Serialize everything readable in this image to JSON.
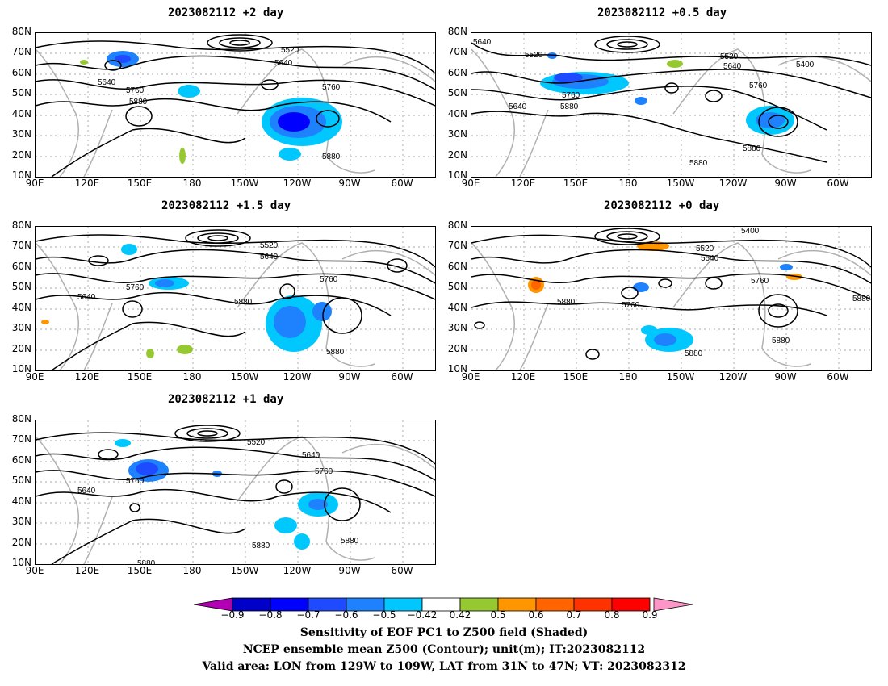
{
  "panels": [
    {
      "title": "2023082112 +2 day",
      "contour_labels": [
        "5520",
        "5640",
        "5640",
        "5760",
        "5760",
        "5880",
        "5880"
      ]
    },
    {
      "title": "2023082112 +0.5 day",
      "contour_labels": [
        "5640",
        "5520",
        "5520",
        "5640",
        "5400",
        "5760",
        "5760",
        "5640",
        "5880",
        "5880",
        "5880"
      ]
    },
    {
      "title": "2023082112 +1.5 day",
      "contour_labels": [
        "5520",
        "5640",
        "5640",
        "5760",
        "5760",
        "5880",
        "5880"
      ]
    },
    {
      "title": "2023082112 +0 day",
      "contour_labels": [
        "5400",
        "5520",
        "5640",
        "5760",
        "5760",
        "5880",
        "5880",
        "5880",
        "5880"
      ]
    },
    {
      "title": "2023082112 +1 day",
      "contour_labels": [
        "5520",
        "5640",
        "5640",
        "5760",
        "5760",
        "5880",
        "5880",
        "5880"
      ]
    }
  ],
  "axes": {
    "lat_labels": [
      "80N",
      "70N",
      "60N",
      "50N",
      "40N",
      "30N",
      "20N",
      "10N"
    ],
    "lon_labels": [
      "90E",
      "120E",
      "150E",
      "180",
      "150W",
      "120W",
      "90W",
      "60W"
    ]
  },
  "colorbar": {
    "labels": [
      "−0.9",
      "−0.8",
      "−0.7",
      "−0.6",
      "−0.5",
      "−0.42",
      "0.42",
      "0.5",
      "0.6",
      "0.7",
      "0.8",
      "0.9"
    ],
    "colors": [
      "#0000c8",
      "#0000ff",
      "#1e4bff",
      "#1e82ff",
      "#00c8ff",
      "#ffffff",
      "#96c832",
      "#ff9600",
      "#ff6400",
      "#ff3200",
      "#ff0000"
    ],
    "under_color": "#b400b4",
    "over_color": "#ff96c8"
  },
  "colors": {
    "contour": "#000000",
    "coastline": "#b0b0b0",
    "grid": "#8c8c8c"
  },
  "captions": [
    "Sensitivity of EOF PC1 to Z500 field (Shaded)",
    "NCEP ensemble mean Z500 (Contour); unit(m); IT:2023082112",
    "Valid area: LON from 129W to 109W, LAT from 31N to 47N; VT: 2023082312"
  ]
}
